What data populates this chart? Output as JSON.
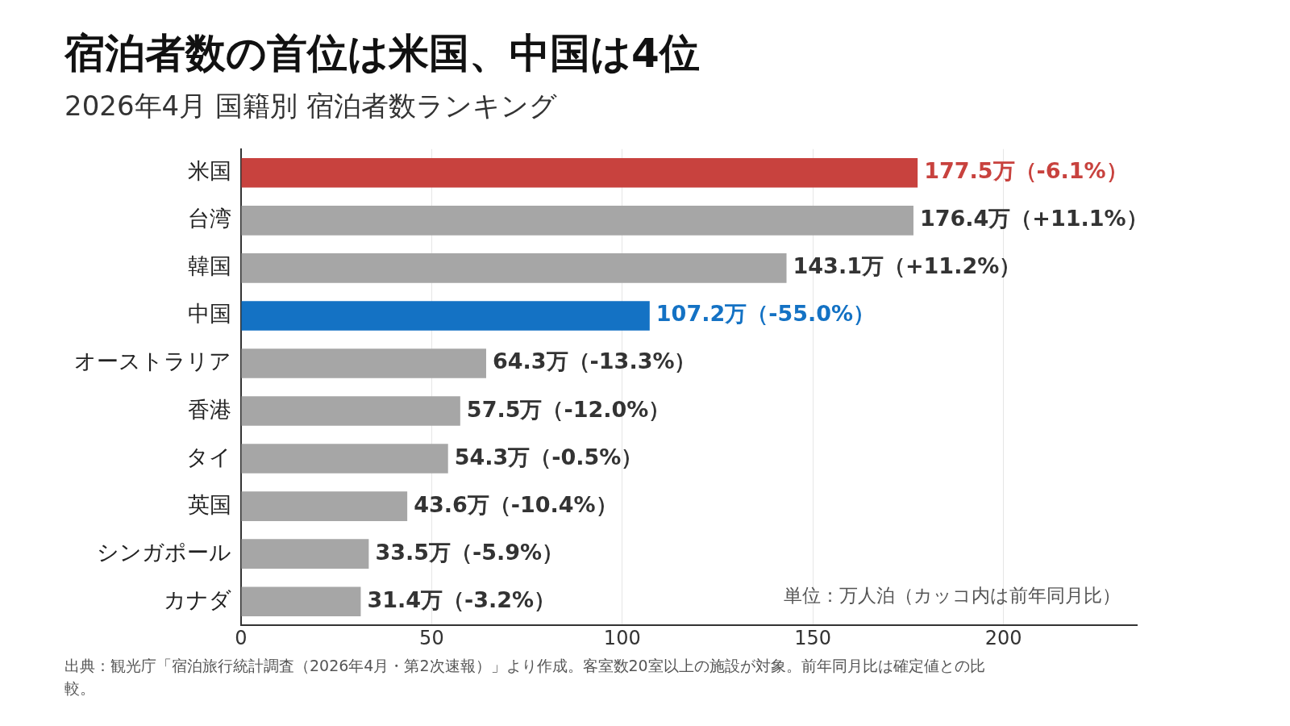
{
  "chart_data": {
    "type": "bar",
    "orientation": "horizontal",
    "title": "宿泊者数の首位は米国、中国は4位",
    "subtitle": "2026年4月 国籍別 宿泊者数ランキング",
    "categories": [
      "米国",
      "台湾",
      "韓国",
      "中国",
      "オーストラリア",
      "香港",
      "タイ",
      "英国",
      "シンガポール",
      "カナダ"
    ],
    "values": [
      177.5,
      176.4,
      143.1,
      107.2,
      64.3,
      57.5,
      54.3,
      43.6,
      33.5,
      31.4
    ],
    "colors": [
      "#c8423e",
      "#a6a6a6",
      "#a6a6a6",
      "#1472c4",
      "#a6a6a6",
      "#a6a6a6",
      "#a6a6a6",
      "#a6a6a6",
      "#a6a6a6",
      "#a6a6a6"
    ],
    "value_labels": [
      "177.5万（-6.1%）",
      "176.4万（+11.1%）",
      "143.1万（+11.2%）",
      "107.2万（-55.0%）",
      "64.3万（-13.3%）",
      "57.5万（-12.0%）",
      "54.3万（-0.5%）",
      "43.6万（-10.4%）",
      "33.5万（-5.9%）",
      "31.4万（-3.2%）"
    ],
    "xlim": [
      0,
      235
    ],
    "xticks": [
      0,
      50,
      100,
      150,
      200
    ],
    "grid": "x",
    "legend": false,
    "annotations": [
      "単位：万人泊（カッコ内は前年同月比）",
      "出典：観光庁「宿泊旅行統計調査（2026年4月・第2次速報）」より作成。客室数20室以上の施設が対象。前年同月比は確定値との比較。"
    ]
  }
}
